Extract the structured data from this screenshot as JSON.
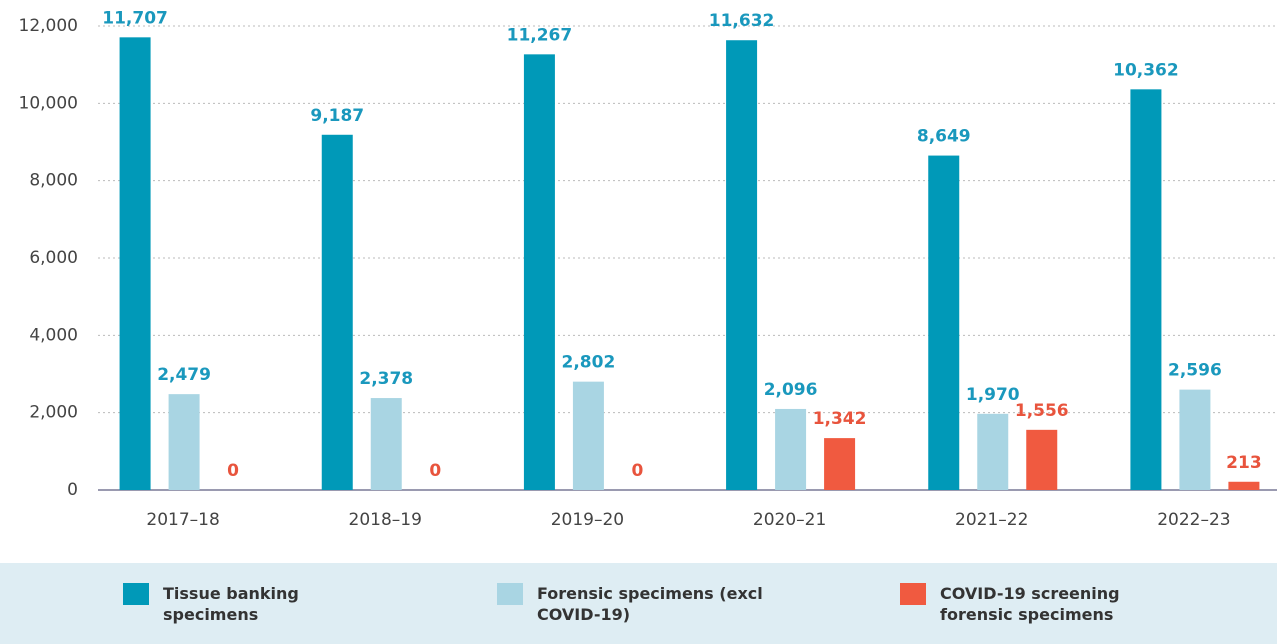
{
  "chart_data": {
    "type": "bar",
    "categories": [
      "2017–18",
      "2018–19",
      "2019–20",
      "2020–21",
      "2021–22",
      "2022–23"
    ],
    "series": [
      {
        "name": "Tissue banking specimens",
        "color": "#0099b8",
        "label_color": "#1a98bd",
        "values": [
          11707,
          9187,
          11267,
          11632,
          8649,
          10362
        ],
        "value_labels": [
          "11,707",
          "9,187",
          "11,267",
          "11,632",
          "8,649",
          "10,362"
        ]
      },
      {
        "name": "Forensic specimens (excl COVID-19)",
        "color": "#a9d5e3",
        "label_color": "#1a98bd",
        "values": [
          2479,
          2378,
          2802,
          2096,
          1970,
          2596
        ],
        "value_labels": [
          "2,479",
          "2,378",
          "2,802",
          "2,096",
          "1,970",
          "2,596"
        ]
      },
      {
        "name": "COVID-19 screening forensic specimens",
        "color": "#f05a40",
        "label_color": "#e8543d",
        "values": [
          0,
          0,
          0,
          1342,
          1556,
          213
        ],
        "value_labels": [
          "0",
          "0",
          "0",
          "1,342",
          "1,556",
          "213"
        ]
      }
    ],
    "ylim": [
      0,
      12000
    ],
    "yticks": [
      0,
      {
        "value": 2000,
        "label": "2,000"
      },
      {
        "value": 4000,
        "label": "4,000"
      },
      {
        "value": 6000,
        "label": "6,000"
      },
      {
        "value": 8000,
        "label": "8,000"
      },
      {
        "value": 10000,
        "label": "10,000"
      },
      {
        "value": 12000,
        "label": "12,000"
      }
    ],
    "grid": true
  }
}
